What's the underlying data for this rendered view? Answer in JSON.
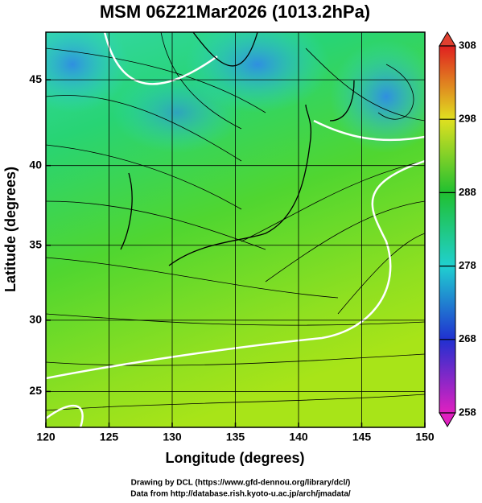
{
  "chart_data": {
    "type": "map",
    "projection": "mercator",
    "title": "MSM 06Z21Mar2026 (1013.2hPa)",
    "xlabel": "Longitude (degrees)",
    "ylabel": "Latitude  (degrees)",
    "xlim": [
      120,
      150
    ],
    "ylim": [
      22.4,
      47.6
    ],
    "xticks": [
      120,
      125,
      130,
      135,
      140,
      145,
      150
    ],
    "yticks": [
      25,
      30,
      35,
      40,
      45
    ],
    "grid": true,
    "colorbar": {
      "lim": [
        258,
        308
      ],
      "ticks": [
        258,
        268,
        278,
        288,
        298,
        308
      ]
    },
    "credits": [
      "Drawing by DCL (https://www.gfd-dennou.org/library/dcl/)",
      "Data from http://database.rish.kyoto-u.ac.jp/arch/jmadata/"
    ]
  }
}
